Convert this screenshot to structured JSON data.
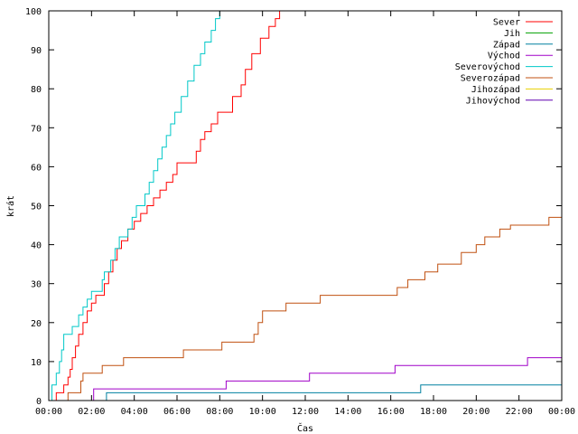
{
  "chart_data": {
    "type": "line",
    "title": "",
    "xlabel": "Čas",
    "ylabel": "krát",
    "x_unit": "hours",
    "xlim": [
      0,
      24
    ],
    "ylim": [
      0,
      100
    ],
    "x_ticks": [
      {
        "x": 0,
        "label": "00:00"
      },
      {
        "x": 2,
        "label": "02:00"
      },
      {
        "x": 4,
        "label": "04:00"
      },
      {
        "x": 6,
        "label": "06:00"
      },
      {
        "x": 8,
        "label": "08:00"
      },
      {
        "x": 10,
        "label": "10:00"
      },
      {
        "x": 12,
        "label": "12:00"
      },
      {
        "x": 14,
        "label": "14:00"
      },
      {
        "x": 16,
        "label": "16:00"
      },
      {
        "x": 18,
        "label": "18:00"
      },
      {
        "x": 20,
        "label": "20:00"
      },
      {
        "x": 22,
        "label": "22:00"
      },
      {
        "x": 24,
        "label": "00:00"
      }
    ],
    "y_ticks": [
      0,
      10,
      20,
      30,
      40,
      50,
      60,
      70,
      80,
      90,
      100
    ],
    "grid": false,
    "legend_position": "top-right",
    "series": [
      {
        "name": "Sever",
        "color": "#ff0000",
        "step": true,
        "points": [
          [
            0.35,
            0
          ],
          [
            0.35,
            2
          ],
          [
            0.7,
            2
          ],
          [
            0.7,
            4
          ],
          [
            0.9,
            4
          ],
          [
            0.9,
            6
          ],
          [
            1.0,
            6
          ],
          [
            1.0,
            8
          ],
          [
            1.1,
            8
          ],
          [
            1.1,
            11
          ],
          [
            1.25,
            11
          ],
          [
            1.25,
            14
          ],
          [
            1.4,
            14
          ],
          [
            1.4,
            17
          ],
          [
            1.6,
            17
          ],
          [
            1.6,
            20
          ],
          [
            1.8,
            20
          ],
          [
            1.8,
            23
          ],
          [
            2.0,
            23
          ],
          [
            2.0,
            25
          ],
          [
            2.2,
            25
          ],
          [
            2.2,
            27
          ],
          [
            2.6,
            27
          ],
          [
            2.6,
            30
          ],
          [
            2.8,
            30
          ],
          [
            2.8,
            33
          ],
          [
            3.0,
            33
          ],
          [
            3.0,
            36
          ],
          [
            3.2,
            36
          ],
          [
            3.2,
            39
          ],
          [
            3.4,
            39
          ],
          [
            3.4,
            41
          ],
          [
            3.7,
            41
          ],
          [
            3.7,
            44
          ],
          [
            4.0,
            44
          ],
          [
            4.0,
            46
          ],
          [
            4.3,
            46
          ],
          [
            4.3,
            48
          ],
          [
            4.6,
            48
          ],
          [
            4.6,
            50
          ],
          [
            4.9,
            50
          ],
          [
            4.9,
            52
          ],
          [
            5.2,
            52
          ],
          [
            5.2,
            54
          ],
          [
            5.5,
            54
          ],
          [
            5.5,
            56
          ],
          [
            5.8,
            56
          ],
          [
            5.8,
            58
          ],
          [
            6.0,
            58
          ],
          [
            6.0,
            61
          ],
          [
            6.9,
            61
          ],
          [
            6.9,
            64
          ],
          [
            7.1,
            64
          ],
          [
            7.1,
            67
          ],
          [
            7.3,
            67
          ],
          [
            7.3,
            69
          ],
          [
            7.6,
            69
          ],
          [
            7.6,
            71
          ],
          [
            7.9,
            71
          ],
          [
            7.9,
            74
          ],
          [
            8.6,
            74
          ],
          [
            8.6,
            78
          ],
          [
            9.0,
            78
          ],
          [
            9.0,
            81
          ],
          [
            9.2,
            81
          ],
          [
            9.2,
            85
          ],
          [
            9.5,
            85
          ],
          [
            9.5,
            89
          ],
          [
            9.9,
            89
          ],
          [
            9.9,
            93
          ],
          [
            10.3,
            93
          ],
          [
            10.3,
            96
          ],
          [
            10.6,
            96
          ],
          [
            10.6,
            98
          ],
          [
            10.8,
            98
          ],
          [
            10.8,
            100
          ]
        ]
      },
      {
        "name": "Jih",
        "color": "#00a000",
        "step": true,
        "points": []
      },
      {
        "name": "Západ",
        "color": "#0080a0",
        "step": true,
        "points": [
          [
            2.7,
            0
          ],
          [
            2.7,
            2
          ],
          [
            17.4,
            2
          ],
          [
            17.4,
            4
          ],
          [
            24,
            4
          ]
        ]
      },
      {
        "name": "Východ",
        "color": "#a000c8",
        "step": true,
        "points": [
          [
            2.1,
            0
          ],
          [
            2.1,
            3
          ],
          [
            8.3,
            3
          ],
          [
            8.3,
            5
          ],
          [
            12.2,
            5
          ],
          [
            12.2,
            7
          ],
          [
            16.2,
            7
          ],
          [
            16.2,
            9
          ],
          [
            22.4,
            9
          ],
          [
            22.4,
            11
          ],
          [
            24,
            11
          ]
        ]
      },
      {
        "name": "Severovýchod",
        "color": "#00c8c8",
        "step": true,
        "points": [
          [
            0.15,
            0
          ],
          [
            0.15,
            4
          ],
          [
            0.35,
            4
          ],
          [
            0.35,
            7
          ],
          [
            0.5,
            7
          ],
          [
            0.5,
            10
          ],
          [
            0.6,
            10
          ],
          [
            0.6,
            13
          ],
          [
            0.7,
            13
          ],
          [
            0.7,
            17
          ],
          [
            1.1,
            17
          ],
          [
            1.1,
            19
          ],
          [
            1.4,
            19
          ],
          [
            1.4,
            22
          ],
          [
            1.6,
            22
          ],
          [
            1.6,
            24
          ],
          [
            1.8,
            24
          ],
          [
            1.8,
            26
          ],
          [
            2.0,
            26
          ],
          [
            2.0,
            28
          ],
          [
            2.5,
            28
          ],
          [
            2.5,
            31
          ],
          [
            2.6,
            31
          ],
          [
            2.6,
            33
          ],
          [
            2.9,
            33
          ],
          [
            2.9,
            36
          ],
          [
            3.1,
            36
          ],
          [
            3.1,
            39
          ],
          [
            3.3,
            39
          ],
          [
            3.3,
            42
          ],
          [
            3.7,
            42
          ],
          [
            3.7,
            44
          ],
          [
            3.9,
            44
          ],
          [
            3.9,
            47
          ],
          [
            4.1,
            47
          ],
          [
            4.1,
            50
          ],
          [
            4.5,
            50
          ],
          [
            4.5,
            53
          ],
          [
            4.7,
            53
          ],
          [
            4.7,
            56
          ],
          [
            4.9,
            56
          ],
          [
            4.9,
            59
          ],
          [
            5.1,
            59
          ],
          [
            5.1,
            62
          ],
          [
            5.3,
            62
          ],
          [
            5.3,
            65
          ],
          [
            5.5,
            65
          ],
          [
            5.5,
            68
          ],
          [
            5.7,
            68
          ],
          [
            5.7,
            71
          ],
          [
            5.9,
            71
          ],
          [
            5.9,
            74
          ],
          [
            6.2,
            74
          ],
          [
            6.2,
            78
          ],
          [
            6.5,
            78
          ],
          [
            6.5,
            82
          ],
          [
            6.8,
            82
          ],
          [
            6.8,
            86
          ],
          [
            7.1,
            86
          ],
          [
            7.1,
            89
          ],
          [
            7.3,
            89
          ],
          [
            7.3,
            92
          ],
          [
            7.6,
            92
          ],
          [
            7.6,
            95
          ],
          [
            7.8,
            95
          ],
          [
            7.8,
            98
          ],
          [
            8.0,
            98
          ],
          [
            8.0,
            100
          ]
        ]
      },
      {
        "name": "Severozápad",
        "color": "#c05010",
        "step": true,
        "points": [
          [
            0.9,
            0
          ],
          [
            0.9,
            2
          ],
          [
            1.5,
            2
          ],
          [
            1.5,
            5
          ],
          [
            1.6,
            5
          ],
          [
            1.6,
            7
          ],
          [
            2.5,
            7
          ],
          [
            2.5,
            9
          ],
          [
            3.5,
            9
          ],
          [
            3.5,
            11
          ],
          [
            6.3,
            11
          ],
          [
            6.3,
            13
          ],
          [
            8.1,
            13
          ],
          [
            8.1,
            15
          ],
          [
            9.6,
            15
          ],
          [
            9.6,
            17
          ],
          [
            9.8,
            17
          ],
          [
            9.8,
            20
          ],
          [
            10.0,
            20
          ],
          [
            10.0,
            23
          ],
          [
            11.1,
            23
          ],
          [
            11.1,
            25
          ],
          [
            12.7,
            25
          ],
          [
            12.7,
            27
          ],
          [
            16.3,
            27
          ],
          [
            16.3,
            29
          ],
          [
            16.8,
            29
          ],
          [
            16.8,
            31
          ],
          [
            17.6,
            31
          ],
          [
            17.6,
            33
          ],
          [
            18.2,
            33
          ],
          [
            18.2,
            35
          ],
          [
            19.3,
            35
          ],
          [
            19.3,
            38
          ],
          [
            20.0,
            38
          ],
          [
            20.0,
            40
          ],
          [
            20.4,
            40
          ],
          [
            20.4,
            42
          ],
          [
            21.1,
            42
          ],
          [
            21.1,
            44
          ],
          [
            21.6,
            44
          ],
          [
            21.6,
            45
          ],
          [
            23.4,
            45
          ],
          [
            23.4,
            47
          ],
          [
            24,
            47
          ]
        ]
      },
      {
        "name": "Jihozápad",
        "color": "#e8d000",
        "step": true,
        "points": []
      },
      {
        "name": "Jihovýchod",
        "color": "#6000b0",
        "step": true,
        "points": []
      }
    ]
  }
}
